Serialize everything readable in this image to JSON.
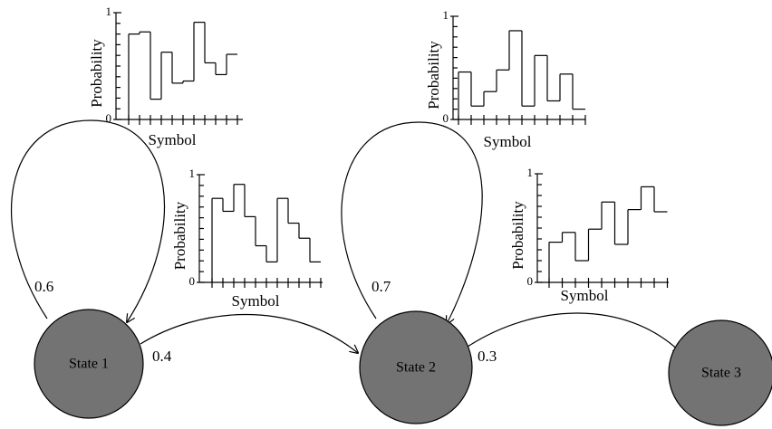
{
  "nodes": [
    {
      "label": "State 1"
    },
    {
      "label": "State 2"
    },
    {
      "label": "State 3"
    }
  ],
  "edges": [
    {
      "label": "0.6"
    },
    {
      "label": "0.4"
    },
    {
      "label": "0.7"
    },
    {
      "label": "0.3"
    }
  ],
  "charts": [
    {
      "type": "step",
      "ylabel": "Probability",
      "xlabel": "Symbol",
      "ylim": [
        0,
        1
      ],
      "yticks": [
        0,
        1
      ],
      "values": [
        0.8,
        0.82,
        0.19,
        0.63,
        0.34,
        0.36,
        0.91,
        0.53,
        0.42,
        0.61
      ]
    },
    {
      "type": "step",
      "ylabel": "Probability",
      "xlabel": "Symbol",
      "ylim": [
        0,
        1
      ],
      "yticks": [
        0,
        1
      ],
      "values": [
        0.46,
        0.13,
        0.27,
        0.48,
        0.86,
        0.13,
        0.62,
        0.18,
        0.44,
        0.1
      ]
    },
    {
      "type": "step",
      "ylabel": "Probability",
      "xlabel": "Symbol",
      "ylim": [
        0,
        1
      ],
      "yticks": [
        0,
        1
      ],
      "values": [
        0.78,
        0.66,
        0.91,
        0.61,
        0.34,
        0.19,
        0.78,
        0.55,
        0.41,
        0.19
      ]
    },
    {
      "type": "step",
      "ylabel": "Probability",
      "xlabel": "Symbol",
      "ylim": [
        0,
        1
      ],
      "yticks": [
        0,
        1
      ],
      "values": [
        0.37,
        0.46,
        0.2,
        0.49,
        0.74,
        0.35,
        0.67,
        0.88,
        0.65
      ]
    }
  ]
}
